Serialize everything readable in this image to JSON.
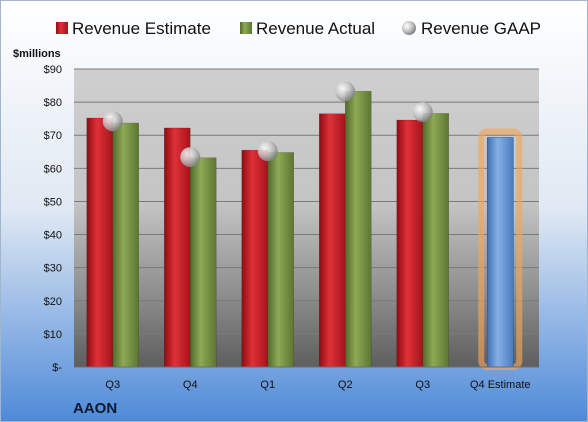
{
  "chart_data": {
    "type": "bar",
    "company": "AAON",
    "unit_label": "$millions",
    "categories": [
      "Q3",
      "Q4",
      "Q1",
      "Q2",
      "Q3",
      "Q4 Estimate"
    ],
    "series": [
      {
        "name": "Revenue Estimate",
        "values": [
          75.2,
          72.2,
          65.5,
          76.5,
          74.6,
          null
        ],
        "color": "#d9202a"
      },
      {
        "name": "Revenue Actual",
        "values": [
          73.7,
          63.2,
          64.8,
          83.3,
          76.6,
          null
        ],
        "color": "#7f9a48"
      },
      {
        "name": "Revenue GAAP",
        "values": [
          74.2,
          63.4,
          65.2,
          83.2,
          77.0,
          null
        ],
        "color": "#b8b8b8"
      }
    ],
    "estimate_bar": {
      "category": "Q4 Estimate",
      "value": 69.3,
      "color": "#6f9fd8",
      "glow": "#f3a65a"
    },
    "y_ticks": [
      "$-",
      "$10",
      "$20",
      "$30",
      "$40",
      "$50",
      "$60",
      "$70",
      "$80",
      "$90"
    ],
    "ylim": [
      0,
      90
    ],
    "grid": true,
    "legend_position": "top"
  }
}
